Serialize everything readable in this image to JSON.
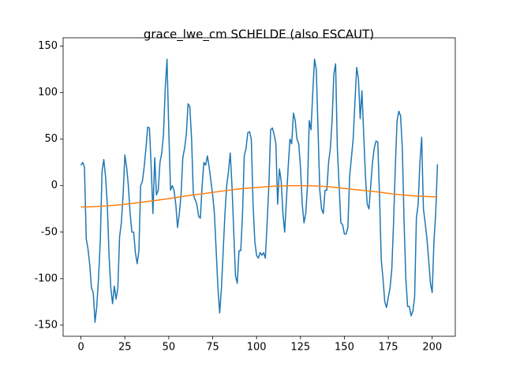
{
  "chart_data": {
    "type": "line",
    "title": "grace_lwe_cm SCHELDE (also ESCAUT)",
    "xlim": [
      -10.15,
      213.15
    ],
    "ylim": [
      -162,
      159
    ],
    "xticks": [
      0,
      25,
      50,
      75,
      100,
      125,
      150,
      175,
      200
    ],
    "yticks": [
      -150,
      -100,
      -50,
      0,
      50,
      100,
      150
    ],
    "series": [
      {
        "color": "#1f77b4",
        "x": [
          0,
          1,
          2,
          3,
          4,
          5,
          6,
          7,
          8,
          9,
          10,
          11,
          12,
          13,
          14,
          15,
          16,
          17,
          18,
          19,
          20,
          21,
          22,
          23,
          24,
          25,
          26,
          27,
          28,
          29,
          30,
          31,
          32,
          33,
          34,
          35,
          36,
          37,
          38,
          39,
          40,
          41,
          42,
          43,
          44,
          45,
          46,
          47,
          48,
          49,
          50,
          51,
          52,
          53,
          54,
          55,
          56,
          57,
          58,
          59,
          60,
          61,
          62,
          63,
          64,
          65,
          66,
          67,
          68,
          69,
          70,
          71,
          72,
          73,
          74,
          75,
          76,
          77,
          78,
          79,
          80,
          81,
          82,
          83,
          84,
          85,
          86,
          87,
          88,
          89,
          90,
          91,
          92,
          93,
          94,
          95,
          96,
          97,
          98,
          99,
          100,
          101,
          102,
          103,
          104,
          105,
          106,
          107,
          108,
          109,
          110,
          111,
          112,
          113,
          114,
          115,
          116,
          117,
          118,
          119,
          120,
          121,
          122,
          123,
          124,
          125,
          126,
          127,
          128,
          129,
          130,
          131,
          132,
          133,
          134,
          135,
          136,
          137,
          138,
          139,
          140,
          141,
          142,
          143,
          144,
          145,
          146,
          147,
          148,
          149,
          150,
          151,
          152,
          153,
          154,
          155,
          156,
          157,
          158,
          159,
          160,
          161,
          162,
          163,
          164,
          165,
          166,
          167,
          168,
          169,
          170,
          171,
          172,
          173,
          174,
          175,
          176,
          177,
          178,
          179,
          180,
          181,
          182,
          183,
          184,
          185,
          186,
          187,
          188,
          189,
          190,
          191,
          192,
          193,
          194,
          195,
          196,
          197,
          198,
          199,
          200,
          201,
          202,
          203
        ],
        "values": [
          22,
          25,
          20,
          -57,
          -68,
          -85,
          -110,
          -115,
          -147,
          -130,
          -100,
          -60,
          15,
          28,
          10,
          -20,
          -75,
          -110,
          -127,
          -108,
          -122,
          -110,
          -55,
          -40,
          -10,
          33,
          20,
          0,
          -30,
          -50,
          -50,
          -72,
          -84,
          -70,
          0,
          5,
          20,
          40,
          63,
          62,
          20,
          -30,
          30,
          -10,
          -5,
          25,
          35,
          55,
          105,
          136,
          60,
          -5,
          0,
          -5,
          -20,
          -45,
          -30,
          -10,
          30,
          40,
          55,
          88,
          85,
          50,
          -10,
          -15,
          -20,
          -33,
          -35,
          0,
          25,
          22,
          32,
          20,
          5,
          -10,
          -30,
          -70,
          -110,
          -137,
          -110,
          -70,
          -30,
          0,
          15,
          35,
          0,
          -50,
          -97,
          -105,
          -70,
          -70,
          -30,
          32,
          40,
          57,
          58,
          50,
          -20,
          -60,
          -75,
          -78,
          -72,
          -75,
          -72,
          -78,
          -40,
          0,
          60,
          62,
          55,
          45,
          -20,
          18,
          5,
          -30,
          -50,
          -15,
          20,
          50,
          45,
          78,
          70,
          50,
          45,
          20,
          -20,
          -40,
          -30,
          0,
          70,
          60,
          100,
          136,
          125,
          60,
          -5,
          -25,
          -30,
          -5,
          -5,
          25,
          40,
          70,
          120,
          131,
          40,
          0,
          -40,
          -42,
          -52,
          -52,
          -45,
          10,
          30,
          50,
          90,
          127,
          115,
          72,
          102,
          55,
          10,
          -20,
          -25,
          0,
          25,
          40,
          48,
          47,
          -10,
          -80,
          -100,
          -125,
          -131,
          -120,
          -110,
          -90,
          -40,
          20,
          70,
          80,
          75,
          40,
          -40,
          -100,
          -130,
          -130,
          -140,
          -135,
          -120,
          -35,
          -20,
          25,
          52,
          -25,
          -40,
          -57,
          -80,
          -105,
          -115,
          -60,
          -30,
          23
        ]
      },
      {
        "color": "#ff7f0e",
        "x": [
          0,
          10,
          20,
          30,
          40,
          50,
          60,
          70,
          80,
          90,
          100,
          110,
          120,
          130,
          140,
          150,
          160,
          170,
          180,
          190,
          200,
          203
        ],
        "values": [
          -23,
          -22.5,
          -21,
          -19,
          -16.5,
          -14,
          -11,
          -8.5,
          -6,
          -3.5,
          -2,
          -0.5,
          0,
          0,
          -1,
          -3,
          -5,
          -7,
          -9.5,
          -11,
          -12,
          -12
        ]
      }
    ]
  }
}
